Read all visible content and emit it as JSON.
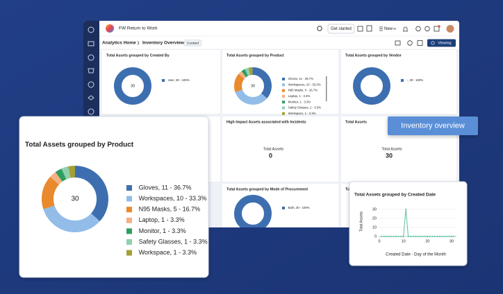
{
  "app": {
    "title": "FW Return to Work",
    "get_started": "Get started",
    "new_menu": "New"
  },
  "breadcrumb": {
    "home": "Analytics Home",
    "current": "Inventory Overview",
    "badge": "Curated",
    "viewing": "Viewing"
  },
  "widgets": [
    {
      "title": "Total Assets grouped by Created By",
      "center": 30,
      "legend": [
        {
          "label": "User, 30 - 100%",
          "value": 30,
          "color": "#3d6fb0"
        }
      ]
    },
    {
      "title": "Total Assets grouped by Product",
      "center": 30,
      "legend": [
        {
          "label": "Gloves, 11 - 36.7%",
          "value": 11,
          "color": "#3d6fb0"
        },
        {
          "label": "Workspaces, 10 - 33.3%",
          "value": 10,
          "color": "#93bde8"
        },
        {
          "label": "N95 Masks, 5 - 16.7%",
          "value": 5,
          "color": "#e88a2d"
        },
        {
          "label": "Laptop, 1 - 3.3%",
          "value": 1,
          "color": "#f4b183"
        },
        {
          "label": "Monitor, 1 - 3.3%",
          "value": 1,
          "color": "#2e9e5e"
        },
        {
          "label": "Safety Glasses, 1 - 3.3%",
          "value": 1,
          "color": "#8fd0b0"
        },
        {
          "label": "Workspace, 1 - 3.3%",
          "value": 1,
          "color": "#a3a034"
        }
      ]
    },
    {
      "title": "Total Assets grouped by Vendor",
      "legend": [
        {
          "label": "-, 30 - 100%",
          "value": 30,
          "color": "#3d6fb0"
        }
      ]
    },
    {
      "title": "High Impact Assets associated with Incidents",
      "metric_label": "Total Assets",
      "metric": 0
    },
    {
      "title": "Total Assets",
      "metric_label": "Total Assets",
      "metric": 30
    },
    {
      "title": "Total Assets grouped by Mode of Procurement",
      "legend": [
        {
          "label": "Both, 30 - 100%",
          "value": 30,
          "color": "#3d6fb0"
        }
      ]
    },
    {
      "title": "Tota"
    }
  ],
  "callout": "Inventory overview",
  "product_card": {
    "title": "Total Assets grouped by Product",
    "center": 30,
    "legend": [
      {
        "label": "Gloves, 11 - 36.7%",
        "value": 11,
        "color": "#3d6fb0"
      },
      {
        "label": "Workspaces, 10 - 33.3%",
        "value": 10,
        "color": "#93bde8"
      },
      {
        "label": "N95 Masks, 5 - 16.7%",
        "value": 5,
        "color": "#e88a2d"
      },
      {
        "label": "Laptop, 1 - 3.3%",
        "value": 1,
        "color": "#f4b183"
      },
      {
        "label": "Monitor, 1 - 3.3%",
        "value": 1,
        "color": "#2e9e5e"
      },
      {
        "label": "Safety Glasses, 1 - 3.3%",
        "value": 1,
        "color": "#8fd0b0"
      },
      {
        "label": "Workspace, 1 - 3.3%",
        "value": 1,
        "color": "#a3a034"
      }
    ]
  },
  "line_card": {
    "type": "line",
    "title": "Total Assets grouped by Created Date",
    "y_label": "Total Assets",
    "x_label": "Created Date - Day of the Month",
    "color": "#5cbfa6",
    "x": [
      1,
      2,
      3,
      4,
      5,
      6,
      7,
      8,
      9,
      10,
      11,
      12,
      13,
      14,
      15,
      16,
      17,
      18,
      19,
      20,
      21,
      22,
      23,
      24,
      25,
      26,
      27,
      28,
      29,
      30,
      31
    ],
    "values": [
      0,
      0,
      0,
      0,
      0,
      0,
      0,
      0,
      0,
      0,
      30,
      0,
      0,
      0,
      0,
      0,
      0,
      0,
      0,
      0,
      0,
      0,
      0,
      0,
      0,
      0,
      0,
      0,
      0,
      0,
      0
    ],
    "xlim": [
      0,
      32
    ],
    "ylim": [
      0,
      33
    ],
    "xticks": [
      0,
      10,
      20,
      30
    ],
    "yticks": [
      0,
      10,
      20,
      30
    ],
    "grid": true
  }
}
